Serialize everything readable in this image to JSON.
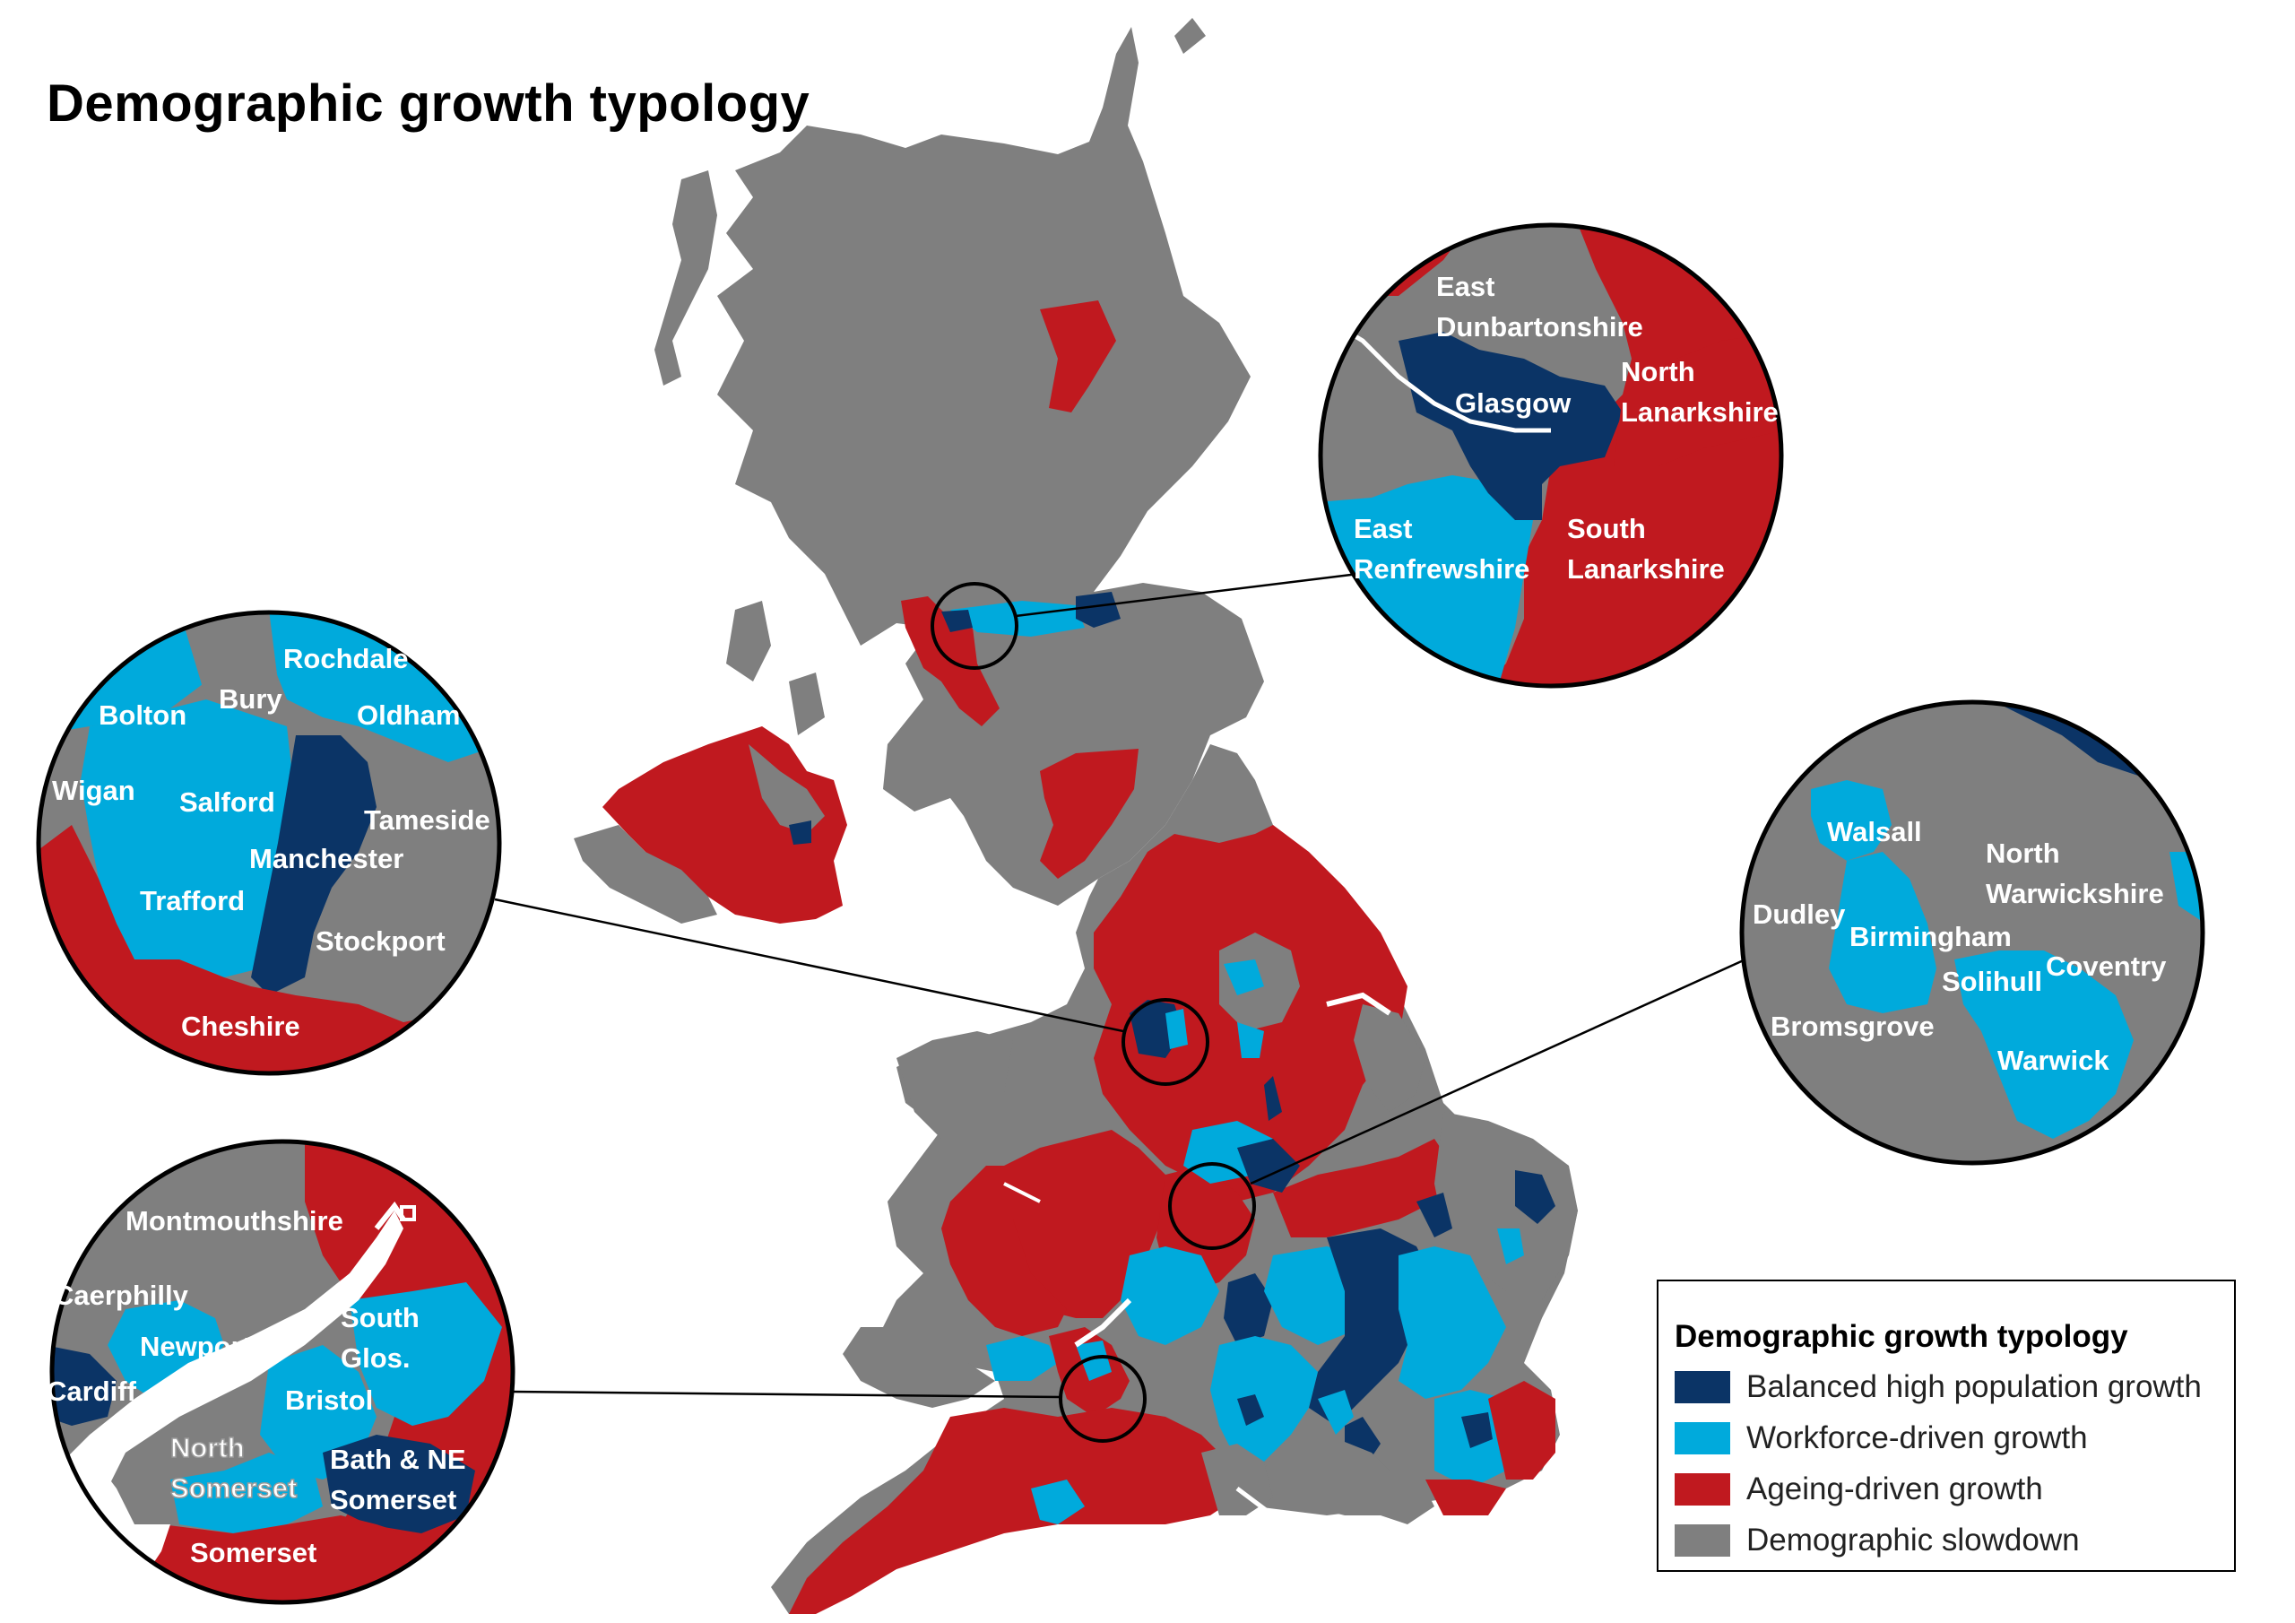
{
  "title": "Demographic growth typology",
  "legend": {
    "title": "Demographic growth typology",
    "items": [
      {
        "label": "Balanced high population growth",
        "color": "#0b3466"
      },
      {
        "label": "Workforce-driven growth",
        "color": "#00aadc"
      },
      {
        "label": "Ageing-driven growth",
        "color": "#c0191f"
      },
      {
        "label": "Demographic slowdown",
        "color": "#7f7f7f"
      }
    ]
  },
  "insets": {
    "glasgow": {
      "east_dunbartonshire_1": "East",
      "east_dunbartonshire_2": "Dunbartonshire",
      "glasgow": "Glasgow",
      "north_lanarkshire_1": "North",
      "north_lanarkshire_2": "Lanarkshire",
      "east_renfrewshire_1": "East",
      "east_renfrewshire_2": "Renfrewshire",
      "south_lanarkshire_1": "South",
      "south_lanarkshire_2": "Lanarkshire"
    },
    "manchester": {
      "rochdale": "Rochdale",
      "bury": "Bury",
      "bolton": "Bolton",
      "oldham": "Oldham",
      "wigan": "Wigan",
      "salford": "Salford",
      "tameside": "Tameside",
      "manchester": "Manchester",
      "trafford": "Trafford",
      "stockport": "Stockport",
      "cheshire": "Cheshire"
    },
    "birmingham": {
      "walsall": "Walsall",
      "north_warwickshire_1": "North",
      "north_warwickshire_2": "Warwickshire",
      "dudley": "Dudley",
      "birmingham": "Birmingham",
      "solihull": "Solihull",
      "coventry": "Coventry",
      "bromsgrove": "Bromsgrove",
      "warwick": "Warwick"
    },
    "bristol": {
      "montmouthshire": "Montmouthshire",
      "caerphilly": "Caerphilly",
      "newport": "Newport",
      "south_glos_1": "South",
      "south_glos_2": "Glos.",
      "cardiff": "Cardiff",
      "bristol": "Bristol",
      "north_somerset_1": "North",
      "north_somerset_2": "Somerset",
      "bath_1": "Bath & NE",
      "bath_2": "Somerset",
      "somerset": "Somerset"
    }
  }
}
